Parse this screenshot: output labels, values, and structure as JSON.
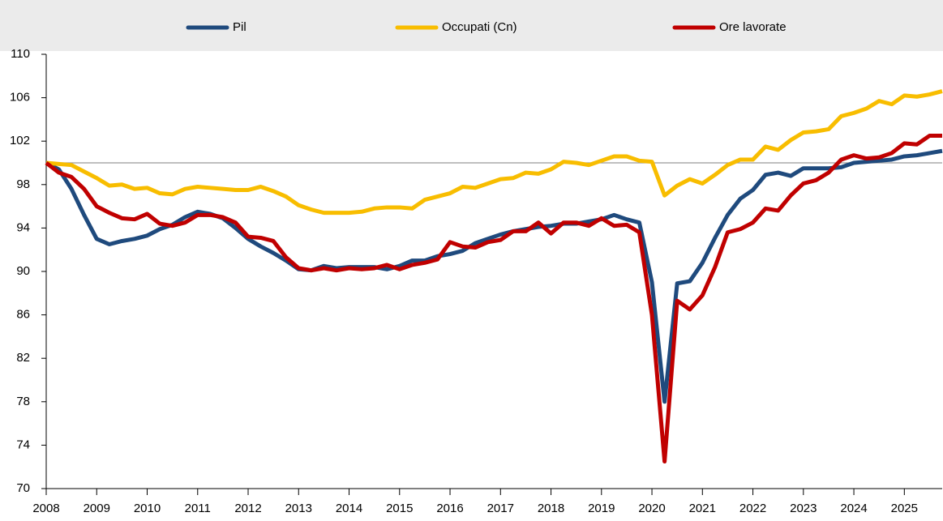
{
  "chart_data": {
    "type": "line",
    "categories": [
      "2008",
      null,
      null,
      null,
      "2009",
      null,
      null,
      null,
      "2010",
      null,
      null,
      null,
      "2011",
      null,
      null,
      null,
      "2012",
      null,
      null,
      null,
      "2013",
      null,
      null,
      null,
      "2014",
      null,
      null,
      null,
      "2015",
      null,
      null,
      null,
      "2016",
      null,
      null,
      null,
      "2017",
      null,
      null,
      null,
      "2018",
      null,
      null,
      null,
      "2019",
      null,
      null,
      null,
      "2020",
      null,
      null,
      null,
      "2021",
      null,
      null,
      null,
      "2022",
      null,
      null,
      null,
      "2023",
      null,
      null,
      null,
      "2024",
      null,
      null,
      null,
      "2025",
      null,
      null,
      null
    ],
    "series": [
      {
        "name": "Pil",
        "color": "#1f4a7d",
        "values": [
          100,
          99.4,
          97.6,
          95.2,
          93.0,
          92.5,
          92.8,
          93.0,
          93.3,
          93.9,
          94.3,
          95.0,
          95.5,
          95.3,
          94.9,
          94.0,
          93.0,
          92.3,
          91.7,
          91.0,
          90.2,
          90.1,
          90.5,
          90.3,
          90.4,
          90.4,
          90.4,
          90.2,
          90.5,
          91.0,
          91.0,
          91.4,
          91.6,
          91.9,
          92.6,
          93.0,
          93.4,
          93.7,
          93.9,
          94.1,
          94.2,
          94.4,
          94.4,
          94.6,
          94.8,
          95.2,
          94.8,
          94.5,
          89.0,
          78.0,
          88.9,
          89.1,
          90.8,
          93.1,
          95.2,
          96.7,
          97.5,
          98.9,
          99.1,
          98.8,
          99.5,
          99.5,
          99.5,
          99.6,
          100.0,
          100.1,
          100.2,
          100.3,
          100.6,
          100.7,
          100.9,
          101.1
        ]
      },
      {
        "name": "Occupati (Cn)",
        "color": "#f8bd00",
        "values": [
          100,
          99.9,
          99.8,
          99.2,
          98.6,
          97.9,
          98.0,
          97.6,
          97.7,
          97.2,
          97.1,
          97.6,
          97.8,
          97.7,
          97.6,
          97.5,
          97.5,
          97.8,
          97.4,
          96.9,
          96.1,
          95.7,
          95.4,
          95.4,
          95.4,
          95.5,
          95.8,
          95.9,
          95.9,
          95.8,
          96.6,
          96.9,
          97.2,
          97.8,
          97.7,
          98.1,
          98.5,
          98.6,
          99.1,
          99.0,
          99.4,
          100.1,
          100.0,
          99.8,
          100.2,
          100.6,
          100.6,
          100.2,
          100.1,
          97.0,
          97.9,
          98.5,
          98.1,
          98.9,
          99.8,
          100.3,
          100.3,
          101.5,
          101.2,
          102.1,
          102.8,
          102.9,
          103.1,
          104.3,
          104.6,
          105.0,
          105.7,
          105.4,
          106.2,
          106.1,
          106.3,
          106.6
        ]
      },
      {
        "name": "Ore lavorate",
        "color": "#c00000",
        "values": [
          100,
          99.1,
          98.7,
          97.6,
          96.0,
          95.4,
          94.9,
          94.8,
          95.3,
          94.4,
          94.2,
          94.5,
          95.2,
          95.2,
          95.0,
          94.5,
          93.2,
          93.1,
          92.8,
          91.3,
          90.3,
          90.1,
          90.3,
          90.1,
          90.3,
          90.2,
          90.3,
          90.6,
          90.2,
          90.6,
          90.8,
          91.1,
          92.7,
          92.3,
          92.2,
          92.7,
          92.9,
          93.7,
          93.7,
          94.5,
          93.5,
          94.5,
          94.5,
          94.2,
          94.9,
          94.2,
          94.3,
          93.6,
          86.0,
          72.5,
          87.3,
          86.5,
          87.8,
          90.4,
          93.6,
          93.9,
          94.5,
          95.8,
          95.6,
          97.0,
          98.1,
          98.4,
          99.1,
          100.3,
          100.7,
          100.4,
          100.5,
          100.9,
          101.8,
          101.7,
          102.5,
          102.5
        ]
      }
    ],
    "ylim": [
      70,
      110
    ],
    "yticks": [
      70,
      74,
      78,
      82,
      86,
      90,
      94,
      98,
      102,
      106,
      110
    ],
    "reference_line": 100,
    "legend": "top"
  }
}
